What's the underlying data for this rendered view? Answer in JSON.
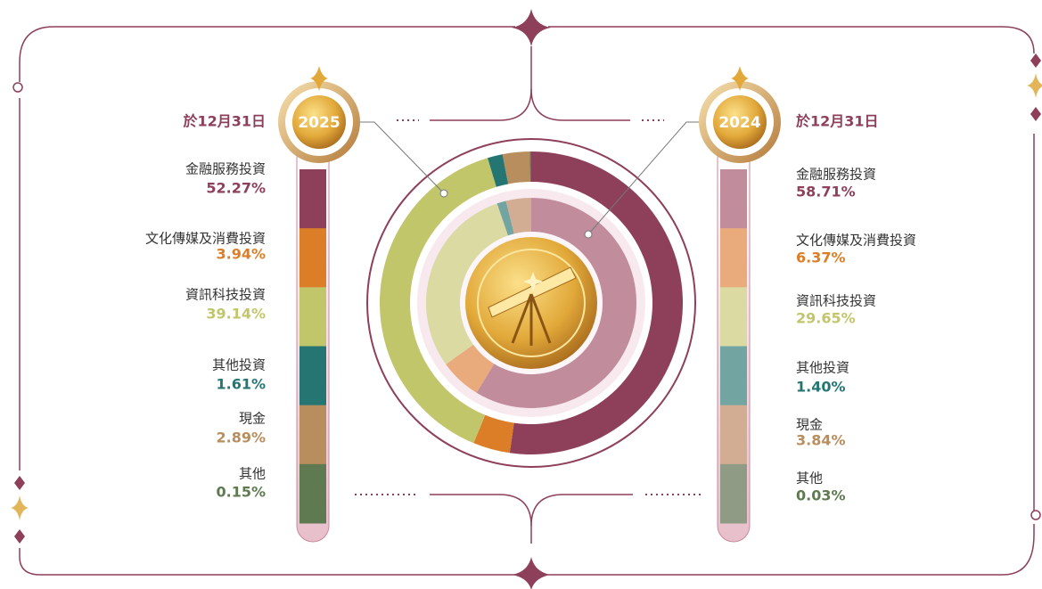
{
  "chart_data": {
    "type": "donut",
    "date_label": "於12月31日",
    "categories": [
      "金融服務投資",
      "文化傳媒及消費投資",
      "資訊科技投資",
      "其他投資",
      "現金",
      "其他"
    ],
    "series": [
      {
        "name": "2025",
        "colors": [
          "#8e3f5a",
          "#dc7e28",
          "#c2c66a",
          "#257673",
          "#b98e5f",
          "#5f7a50"
        ],
        "values": [
          52.27,
          3.94,
          39.14,
          1.61,
          2.89,
          0.15
        ],
        "value_labels": [
          "52.27%",
          "3.94%",
          "39.14%",
          "1.61%",
          "2.89%",
          "0.15%"
        ]
      },
      {
        "name": "2024",
        "colors": [
          "#c18c9c",
          "#e9aa7c",
          "#dadaa2",
          "#72a4a1",
          "#d2ac93",
          "#8f9b84"
        ],
        "values": [
          58.71,
          6.37,
          29.65,
          1.4,
          3.84,
          0.03
        ],
        "value_labels": [
          "58.71%",
          "6.37%",
          "29.65%",
          "1.40%",
          "3.84%",
          "0.03%"
        ]
      }
    ]
  }
}
